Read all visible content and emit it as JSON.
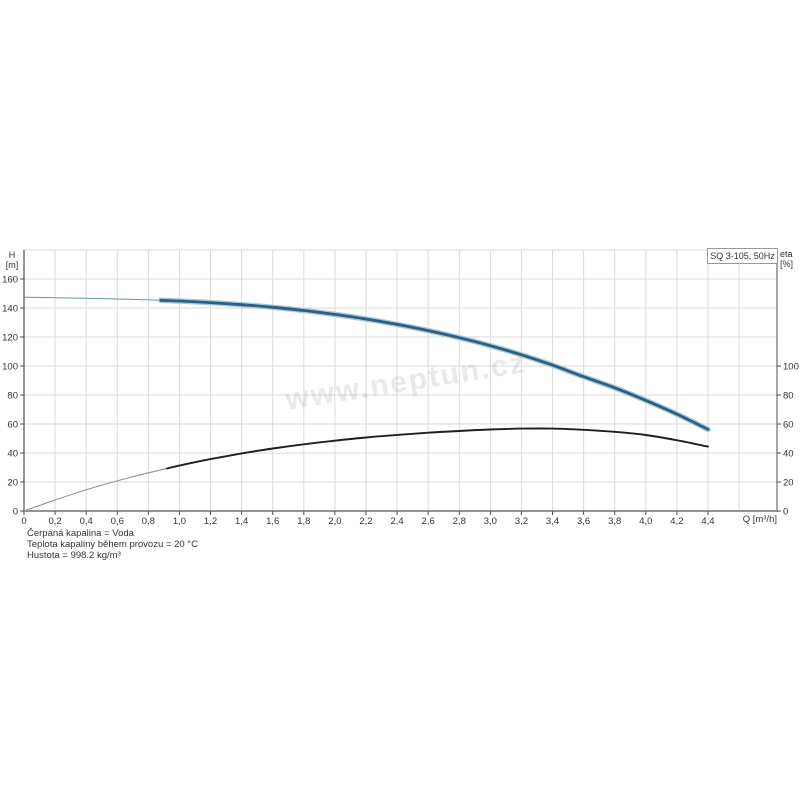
{
  "page": {
    "background": "#ffffff"
  },
  "watermark": "www.neptun.cz",
  "info_lines": [
    "Čerpaná kapalina = Voda",
    "Teplota kapaliny během provozu = 20 °C",
    "Hustota = 998.2 kg/m³"
  ],
  "chart_data": {
    "type": "line",
    "title": "SQ 3-105, 50Hz",
    "x_axis": {
      "label": "Q [m³/h]",
      "min": 0,
      "max": 4.84,
      "tick_step": 0.2,
      "tick_values": [
        0,
        0.2,
        0.4,
        0.6,
        0.8,
        1,
        1.2,
        1.4,
        1.6,
        1.8,
        2,
        2.2,
        2.4,
        2.6,
        2.8,
        3,
        3.2,
        3.4,
        3.6,
        3.8,
        4,
        4.2,
        4.4
      ],
      "tick_labels": [
        "0",
        "0,2",
        "0,4",
        "0,6",
        "0,8",
        "1,0",
        "1,2",
        "1,4",
        "1,6",
        "1,8",
        "2,0",
        "2,2",
        "2,4",
        "2,6",
        "2,8",
        "3,0",
        "3,2",
        "3,4",
        "3,6",
        "3,8",
        "4,0",
        "4,2",
        "4,4"
      ]
    },
    "left_axis": {
      "unit_top": "H",
      "unit_bottom": "[m]",
      "min": 0,
      "max": 180,
      "tick_values": [
        0,
        20,
        40,
        60,
        80,
        100,
        120,
        140,
        160
      ],
      "tick_labels": [
        "0",
        "20",
        "40",
        "60",
        "80",
        "100",
        "120",
        "140",
        "160"
      ]
    },
    "right_axis": {
      "unit_top": "eta",
      "unit_bottom": "[%]",
      "min": 0,
      "max": 100,
      "tick_values": [
        0,
        20,
        40,
        60,
        80,
        100
      ],
      "tick_labels": [
        "0",
        "20",
        "40",
        "60",
        "80",
        "100"
      ]
    },
    "grid": {
      "x_step": 0.2,
      "y_step": 20,
      "color": "#dadada"
    },
    "colors": {
      "axis": "#4d4d4d",
      "baseline": "#949494",
      "text": "#333333"
    },
    "legend": "none",
    "series": [
      {
        "name": "head-curve",
        "axis": "left",
        "color": "#2a6080",
        "halo_color": "#a9c9db",
        "thin_color": "#6b93a8",
        "thin_until": 0.88,
        "points": [
          [
            0,
            147.4
          ],
          [
            0.2,
            147.1
          ],
          [
            0.4,
            146.7
          ],
          [
            0.6,
            146.2
          ],
          [
            0.8,
            145.6
          ],
          [
            1.0,
            144.8
          ],
          [
            1.2,
            143.7
          ],
          [
            1.4,
            142.3
          ],
          [
            1.6,
            140.5
          ],
          [
            1.8,
            138.3
          ],
          [
            2.0,
            135.6
          ],
          [
            2.2,
            132.4
          ],
          [
            2.4,
            128.7
          ],
          [
            2.6,
            124.4
          ],
          [
            2.8,
            119.5
          ],
          [
            3.0,
            114.0
          ],
          [
            3.2,
            107.7
          ],
          [
            3.4,
            100.6
          ],
          [
            3.6,
            92.6
          ],
          [
            3.8,
            85.0
          ],
          [
            4.0,
            76.3
          ],
          [
            4.2,
            66.8
          ],
          [
            4.4,
            56.3
          ]
        ]
      },
      {
        "name": "efficiency-curve",
        "axis": "right",
        "color": "#1f1f1f",
        "halo_color": "",
        "thin_color": "#8a8a8a",
        "thin_until": 0.92,
        "points": [
          [
            0,
            0
          ],
          [
            0.2,
            7.6
          ],
          [
            0.4,
            14.6
          ],
          [
            0.6,
            20.8
          ],
          [
            0.8,
            26.3
          ],
          [
            1.0,
            31.3
          ],
          [
            1.2,
            35.8
          ],
          [
            1.4,
            39.7
          ],
          [
            1.6,
            43.1
          ],
          [
            1.8,
            46.0
          ],
          [
            2.0,
            48.5
          ],
          [
            2.2,
            50.7
          ],
          [
            2.4,
            52.5
          ],
          [
            2.6,
            54.0
          ],
          [
            2.8,
            55.2
          ],
          [
            3.0,
            56.2
          ],
          [
            3.2,
            56.8
          ],
          [
            3.4,
            56.8
          ],
          [
            3.6,
            56.0
          ],
          [
            3.8,
            54.6
          ],
          [
            4.0,
            52.4
          ],
          [
            4.2,
            48.8
          ],
          [
            4.4,
            44.4
          ]
        ]
      }
    ]
  }
}
